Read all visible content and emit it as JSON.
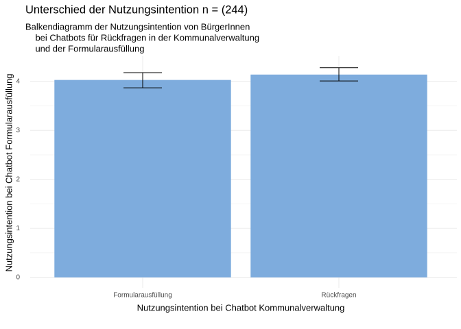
{
  "chart_data": {
    "type": "bar",
    "title": "Unterschied der Nutzungsintention n = (244)",
    "subtitle": [
      "Balkendiagramm der Nutzungsintention von BürgerInnen",
      "    bei Chatbots für Rückfragen in der Kommunalverwaltung",
      "    und der Formularausfüllung"
    ],
    "x_label": "Nutzungsintention bei Chatbot Kommunalverwaltung",
    "y_label": "Nutzungsintention bei Chatbot Formularausfüllung",
    "categories": [
      "Formularausfüllung",
      "Rückfragen"
    ],
    "values": [
      4.03,
      4.14
    ],
    "ci_low": [
      3.87,
      4.01
    ],
    "ci_high": [
      4.18,
      4.28
    ],
    "color": "#7eacdd",
    "ylim": [
      -0.215,
      4.515
    ],
    "yticks": [
      0,
      1,
      2,
      3,
      4
    ],
    "minor_yticks": [
      0.5,
      1.5,
      2.5,
      3.5
    ],
    "grid": true
  }
}
